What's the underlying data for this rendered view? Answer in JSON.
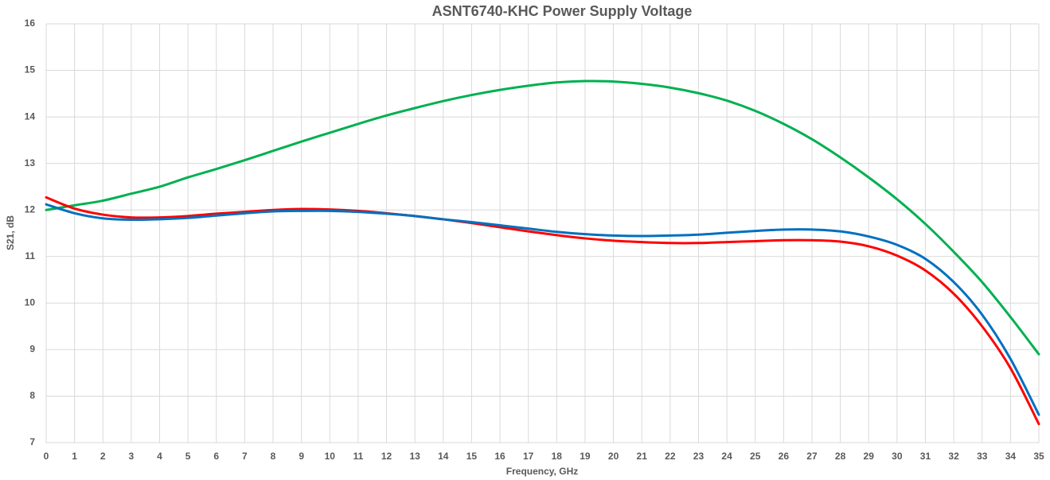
{
  "chart_data": {
    "type": "line",
    "title": "ASNT6740-KHC Power Supply Voltage",
    "x_label": "Frequency, GHz",
    "y_label": "S21, dB",
    "x": [
      0,
      1,
      2,
      3,
      4,
      5,
      6,
      7,
      8,
      9,
      10,
      11,
      12,
      13,
      14,
      15,
      16,
      17,
      18,
      19,
      20,
      21,
      22,
      23,
      24,
      25,
      26,
      27,
      28,
      29,
      30,
      31,
      32,
      33,
      34,
      35
    ],
    "series": [
      {
        "color": "#00b050",
        "values": [
          12.0,
          12.1,
          12.2,
          12.35,
          12.5,
          12.7,
          12.88,
          13.07,
          13.27,
          13.47,
          13.66,
          13.85,
          14.03,
          14.19,
          14.34,
          14.47,
          14.58,
          14.67,
          14.74,
          14.77,
          14.76,
          14.71,
          14.63,
          14.51,
          14.35,
          14.13,
          13.85,
          13.52,
          13.13,
          12.7,
          12.23,
          11.7,
          11.1,
          10.45,
          9.7,
          8.9
        ]
      },
      {
        "color": "#ff0000",
        "values": [
          12.27,
          12.03,
          11.9,
          11.84,
          11.84,
          11.87,
          11.92,
          11.96,
          12.0,
          12.02,
          12.01,
          11.98,
          11.93,
          11.87,
          11.8,
          11.72,
          11.63,
          11.54,
          11.46,
          11.39,
          11.34,
          11.31,
          11.29,
          11.29,
          11.31,
          11.33,
          11.35,
          11.35,
          11.32,
          11.22,
          11.02,
          10.7,
          10.2,
          9.5,
          8.6,
          7.4
        ]
      },
      {
        "color": "#0070c0",
        "values": [
          12.12,
          11.93,
          11.82,
          11.79,
          11.8,
          11.83,
          11.88,
          11.93,
          11.97,
          11.98,
          11.98,
          11.96,
          11.92,
          11.87,
          11.8,
          11.74,
          11.67,
          11.6,
          11.53,
          11.48,
          11.45,
          11.44,
          11.45,
          11.47,
          11.51,
          11.55,
          11.58,
          11.58,
          11.54,
          11.43,
          11.25,
          10.95,
          10.45,
          9.75,
          8.8,
          7.6
        ]
      }
    ],
    "xlim": [
      0,
      35
    ],
    "xticks": [
      0,
      1,
      2,
      3,
      4,
      5,
      6,
      7,
      8,
      9,
      10,
      11,
      12,
      13,
      14,
      15,
      16,
      17,
      18,
      19,
      20,
      21,
      22,
      23,
      24,
      25,
      26,
      27,
      28,
      29,
      30,
      31,
      32,
      33,
      34,
      35
    ],
    "ylim": [
      7,
      16
    ],
    "yticks": [
      7,
      8,
      9,
      10,
      11,
      12,
      13,
      14,
      15,
      16
    ],
    "grid": true
  }
}
